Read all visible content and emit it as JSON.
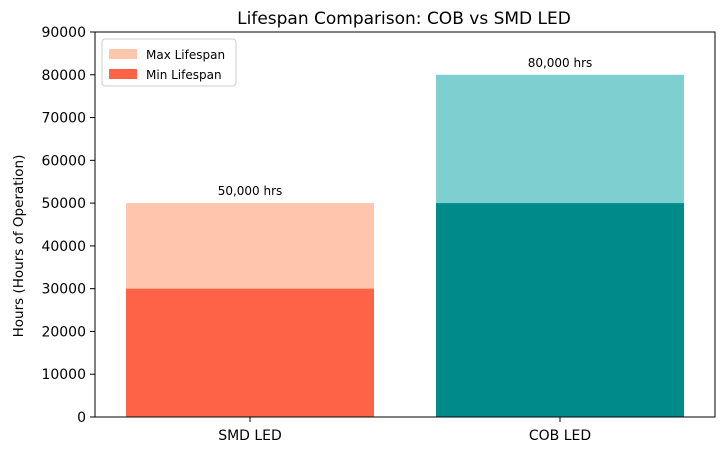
{
  "chart_data": {
    "type": "bar",
    "stacked_overlay": true,
    "title": "Lifespan Comparison: COB vs SMD LED",
    "xlabel": "",
    "ylabel": "Hours (Hours of Operation)",
    "ylim": [
      0,
      90000
    ],
    "yticks": [
      "0",
      "10000",
      "20000",
      "30000",
      "40000",
      "50000",
      "60000",
      "70000",
      "80000",
      "90000"
    ],
    "grid": false,
    "legend_position": "top-left",
    "categories": [
      "SMD LED",
      "COB LED"
    ],
    "series": [
      {
        "name": "Max Lifespan",
        "values": [
          50000,
          80000
        ],
        "colors": [
          "#FFC5AD",
          "#7DD0CF"
        ]
      },
      {
        "name": "Min Lifespan",
        "values": [
          30000,
          50000
        ],
        "colors": [
          "#FF6347",
          "#008B8B"
        ]
      }
    ],
    "data_labels": [
      "50,000 hrs",
      "80,000 hrs"
    ],
    "legend": [
      {
        "label": "Max Lifespan",
        "color": "#FFC5AD"
      },
      {
        "label": "Min Lifespan",
        "color": "#FF6347"
      }
    ]
  }
}
